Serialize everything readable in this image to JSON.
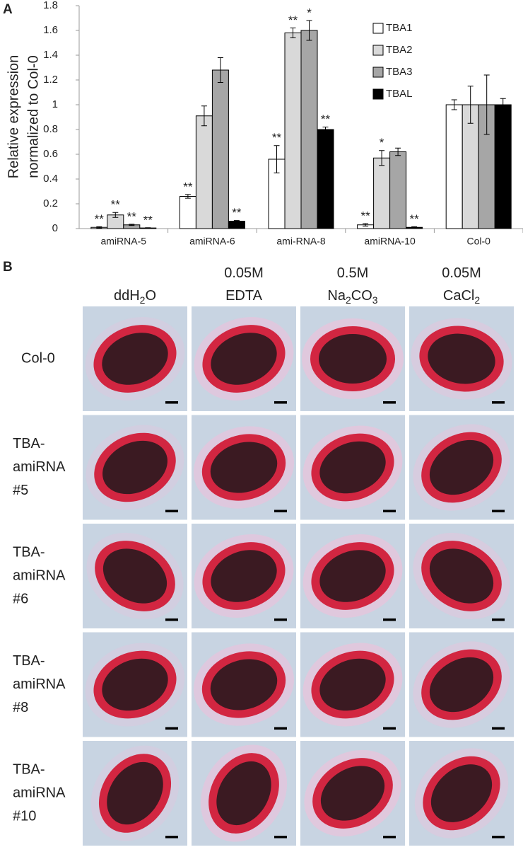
{
  "panel_labels": [
    "A",
    "B"
  ],
  "chart_data": {
    "type": "bar",
    "ylabel": [
      "Relative expression",
      "normalized to Col-0"
    ],
    "categories": [
      "amiRNA-5",
      "amiRNA-6",
      "ami-RNA-8",
      "amiRNA-10",
      "Col-0"
    ],
    "ylim": [
      0,
      1.8
    ],
    "yticks": [
      0,
      0.2,
      0.4,
      0.6,
      0.8,
      1,
      1.2,
      1.4,
      1.6,
      1.8
    ],
    "grid": false,
    "legend": "upper right",
    "series": [
      {
        "name": "TBA1",
        "color": "#ffffff",
        "values": [
          0.01,
          0.26,
          0.56,
          0.03,
          1
        ],
        "errors": [
          0.005,
          0.015,
          0.11,
          0.01,
          0.04
        ],
        "annotations": [
          "**",
          "**",
          "**",
          "**",
          null
        ]
      },
      {
        "name": "TBA2",
        "color": "#d9d9d9",
        "values": [
          0.11,
          0.91,
          1.58,
          0.57,
          1
        ],
        "errors": [
          0.02,
          0.08,
          0.04,
          0.06,
          0.15
        ],
        "annotations": [
          "**",
          null,
          "**",
          "*",
          null
        ]
      },
      {
        "name": "TBA3",
        "color": "#a6a6a6",
        "values": [
          0.03,
          1.28,
          1.6,
          0.62,
          1
        ],
        "errors": [
          0.005,
          0.1,
          0.08,
          0.03,
          0.24
        ],
        "annotations": [
          "**",
          null,
          "*",
          null,
          null
        ]
      },
      {
        "name": "TBAL",
        "color": "#000000",
        "values": [
          0.005,
          0.06,
          0.8,
          0.01,
          1
        ],
        "errors": [
          0.002,
          0.005,
          0.02,
          0.005,
          0.05
        ],
        "annotations": [
          "**",
          "**",
          "**",
          "**",
          null
        ]
      }
    ]
  },
  "micrographs": {
    "columns": [
      [
        [
          {
            "text": "ddH"
          },
          {
            "text": "2",
            "sub": true
          },
          {
            "text": "O"
          }
        ]
      ],
      [
        [
          {
            "text": "0.05M"
          }
        ],
        [
          {
            "text": "EDTA"
          }
        ]
      ],
      [
        [
          {
            "text": "0.5M"
          }
        ],
        [
          {
            "text": "Na"
          },
          {
            "text": "2",
            "sub": true
          },
          {
            "text": "CO"
          },
          {
            "text": "3",
            "sub": true
          }
        ]
      ],
      [
        [
          {
            "text": "0.05M"
          }
        ],
        [
          {
            "text": "CaCl"
          },
          {
            "text": "2",
            "sub": true
          }
        ]
      ]
    ],
    "rows": [
      [
        "Col-0"
      ],
      [
        "TBA-",
        "amiRNA",
        "#5"
      ],
      [
        "TBA-",
        "amiRNA",
        "#6"
      ],
      [
        "TBA-",
        "amiRNA",
        "#8"
      ],
      [
        "TBA-",
        "amiRNA",
        "#10"
      ]
    ]
  }
}
